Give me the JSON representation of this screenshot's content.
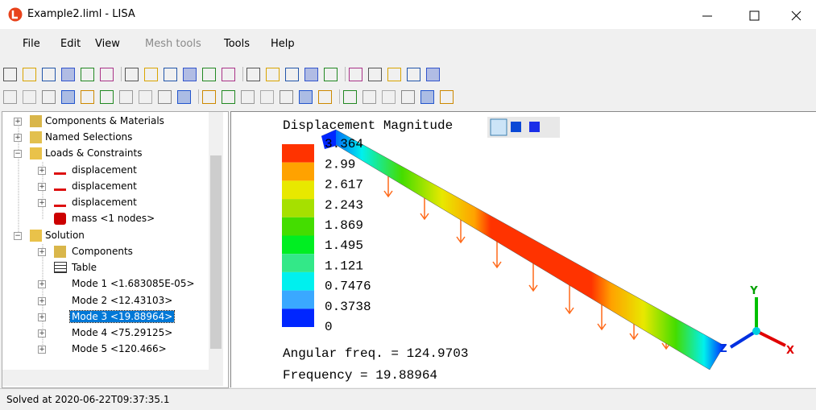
{
  "window": {
    "title": "Example2.liml - LISA"
  },
  "menu": [
    "File",
    "Edit",
    "View",
    "Mesh tools",
    "Tools",
    "Help"
  ],
  "tree": [
    {
      "label": "Components & Materials"
    },
    {
      "label": "Named Selections"
    },
    {
      "label": "Loads & Constraints",
      "children": [
        "displacement",
        "displacement",
        "displacement",
        "mass <1 nodes>"
      ]
    },
    {
      "label": "Solution",
      "children": [
        "Components",
        "Table",
        "Mode 1 <1.683085E-05>",
        "Mode 2 <12.43103>",
        "Mode 3 <19.88964>",
        "Mode 4 <75.29125>",
        "Mode 5 <120.466>"
      ]
    }
  ],
  "viewport": {
    "title": "Displacement Magnitude",
    "legend": [
      {
        "label": "3.364",
        "color": "#ff3300"
      },
      {
        "label": "2.99",
        "color": "#ffa200"
      },
      {
        "label": "2.617",
        "color": "#e8e800"
      },
      {
        "label": "2.243",
        "color": "#a6e000"
      },
      {
        "label": "1.869",
        "color": "#44dd00"
      },
      {
        "label": "1.495",
        "color": "#00ee22"
      },
      {
        "label": "1.121",
        "color": "#33e888"
      },
      {
        "label": "0.7476",
        "color": "#00f0ee"
      },
      {
        "label": "0.3738",
        "color": "#3aa8ff"
      },
      {
        "label": "0",
        "color": "#0026ff"
      }
    ],
    "angular_frequency": "Angular freq. = 124.9703",
    "frequency": "Frequency = 19.88964",
    "axes": [
      "Y",
      "Z",
      "X"
    ]
  },
  "status": "Solved at 2020-06-22T09:37:35.1"
}
